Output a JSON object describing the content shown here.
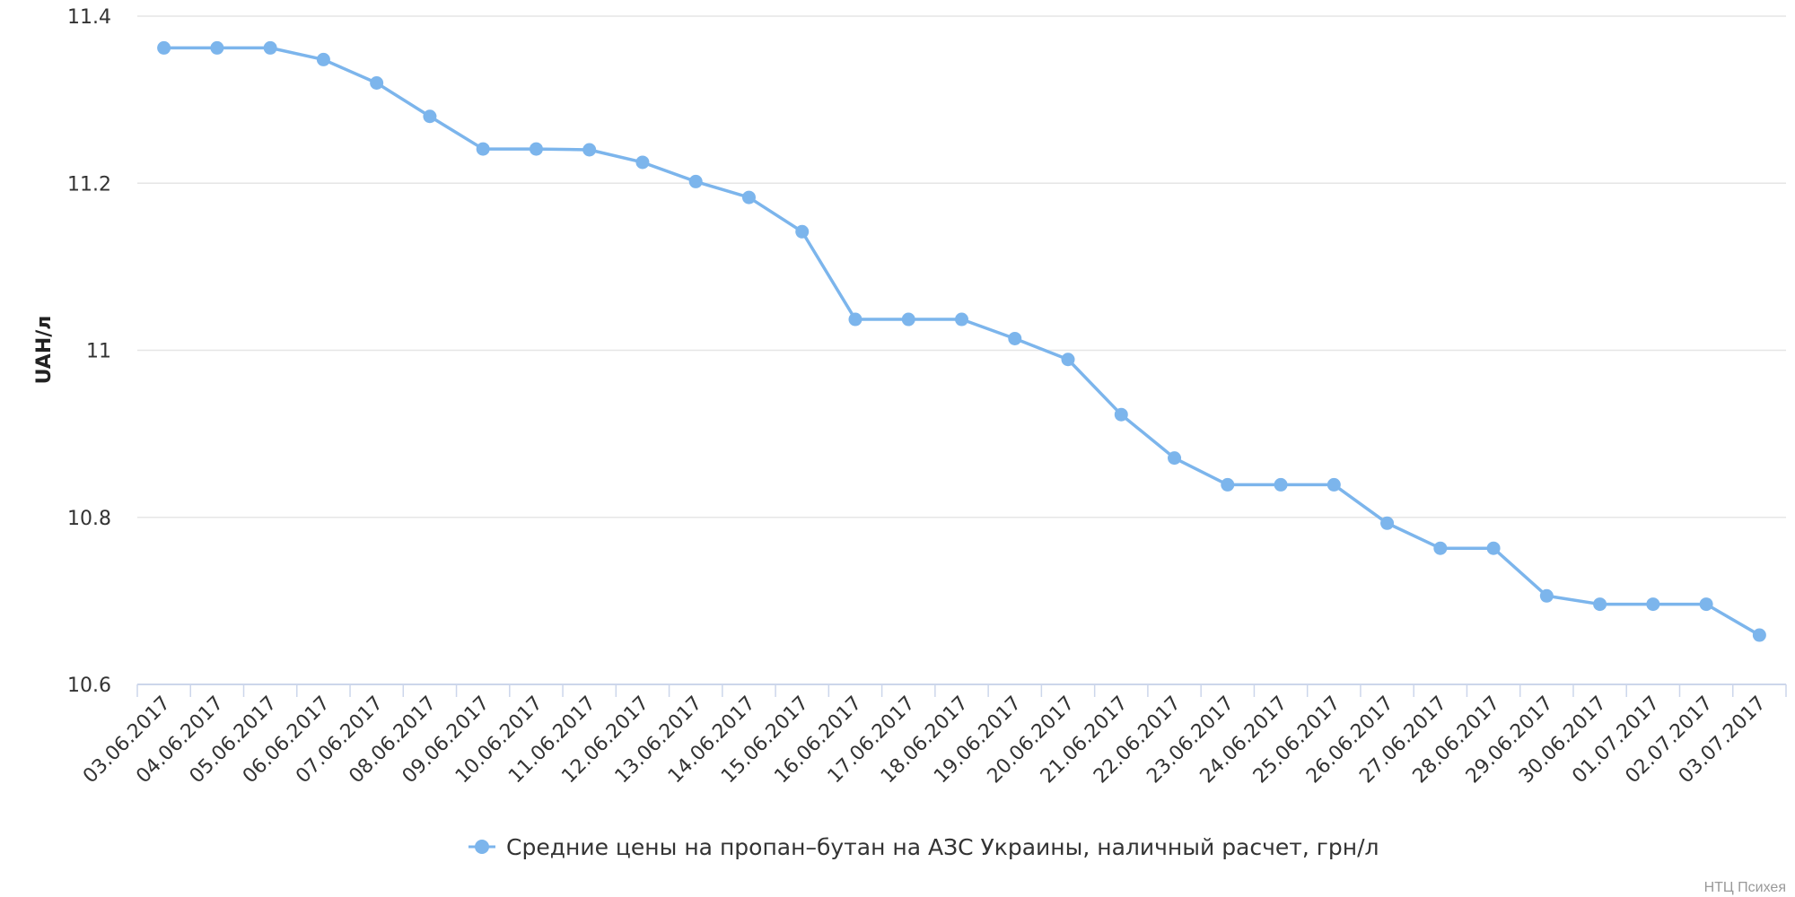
{
  "chart_data": {
    "type": "line",
    "title": "",
    "xlabel": "",
    "ylabel": "UAH/л",
    "ylim": [
      10.6,
      11.4
    ],
    "yticks": [
      "11.4",
      "11.2",
      "11",
      "10.8",
      "10.6"
    ],
    "grid": true,
    "legend_position": "bottom-center",
    "credit": "НТЦ Психея",
    "categories": [
      "03.06.2017",
      "04.06.2017",
      "05.06.2017",
      "06.06.2017",
      "07.06.2017",
      "08.06.2017",
      "09.06.2017",
      "10.06.2017",
      "11.06.2017",
      "12.06.2017",
      "13.06.2017",
      "14.06.2017",
      "15.06.2017",
      "16.06.2017",
      "17.06.2017",
      "18.06.2017",
      "19.06.2017",
      "20.06.2017",
      "21.06.2017",
      "22.06.2017",
      "23.06.2017",
      "24.06.2017",
      "25.06.2017",
      "26.06.2017",
      "27.06.2017",
      "28.06.2017",
      "29.06.2017",
      "30.06.2017",
      "01.07.2017",
      "02.07.2017",
      "03.07.2017"
    ],
    "series": [
      {
        "name": "Средние цены на пропан–бутан на АЗС Украины, наличный расчет, грн/л",
        "color": "#7cb5ec",
        "values": [
          11.362,
          11.362,
          11.362,
          11.348,
          11.32,
          11.28,
          11.241,
          11.241,
          11.24,
          11.225,
          11.202,
          11.183,
          11.142,
          11.037,
          11.037,
          11.037,
          11.014,
          10.989,
          10.923,
          10.871,
          10.839,
          10.839,
          10.839,
          10.793,
          10.763,
          10.763,
          10.706,
          10.696,
          10.696,
          10.696,
          10.659
        ]
      }
    ]
  }
}
